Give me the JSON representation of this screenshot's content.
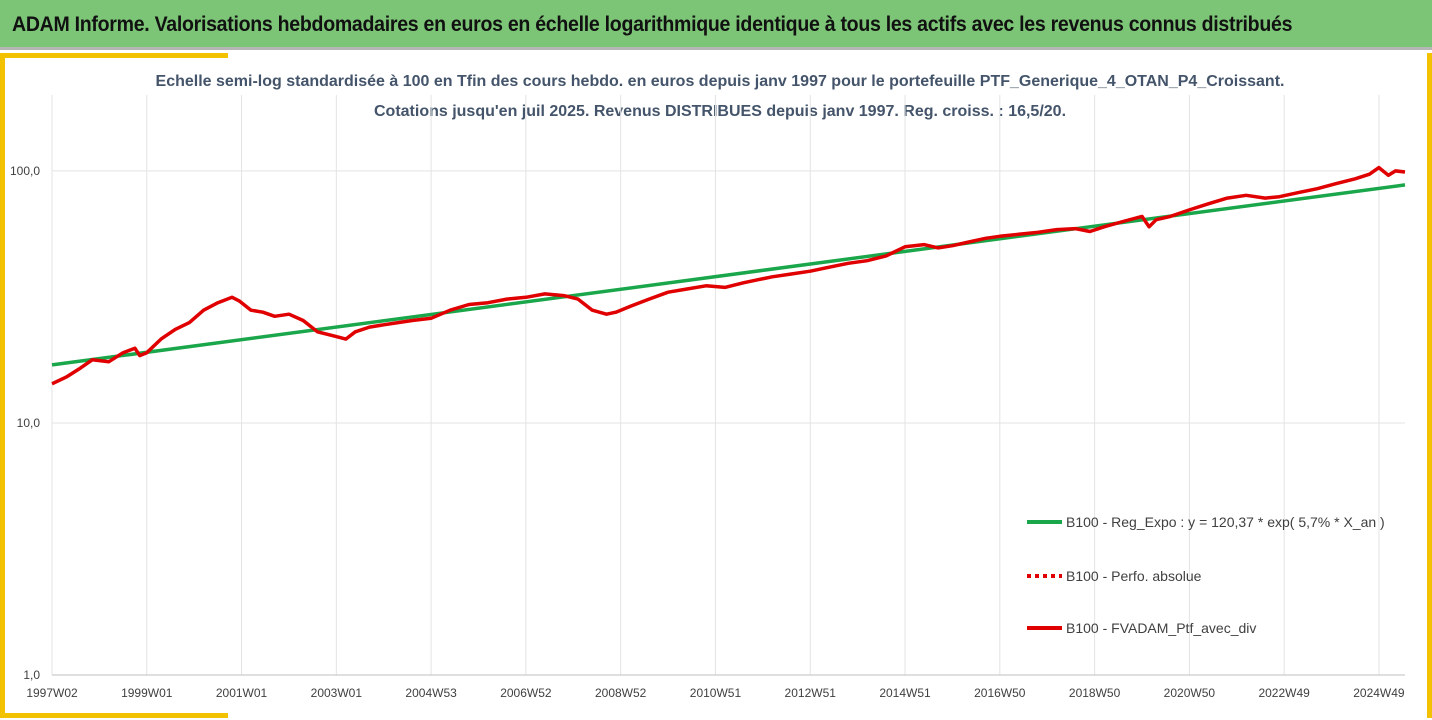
{
  "header": {
    "title": "ADAM Informe. Valorisations hebdomadaires en euros en échelle logarithmique identique à tous les actifs avec les revenus connus distribués"
  },
  "chart_data": {
    "type": "line",
    "title_line1": "Echelle semi-log standardisée  à 100 en Tfin des cours hebdo.  en euros  depuis janv 1997 pour le portefeuille PTF_Generique_4_OTAN_P4_Croissant.",
    "title_line2": "Cotations  jusqu'en juil 2025. Revenus DISTRIBUES depuis janv 1997. Reg. croiss. : 16,5/20.",
    "y_scale": "log",
    "ylim": [
      1,
      200
    ],
    "y_ticks": [
      {
        "value": 1,
        "label": "1,0"
      },
      {
        "value": 10,
        "label": "10,0"
      },
      {
        "value": 100,
        "label": "100,0"
      }
    ],
    "x_range": [
      1997.0,
      2025.55
    ],
    "x_ticks": [
      {
        "value": 1997.0,
        "label": "1997W02"
      },
      {
        "value": 1999.0,
        "label": "1999W01"
      },
      {
        "value": 2001.0,
        "label": "2001W01"
      },
      {
        "value": 2003.0,
        "label": "2003W01"
      },
      {
        "value": 2005.0,
        "label": "2004W53"
      },
      {
        "value": 2007.0,
        "label": "2006W52"
      },
      {
        "value": 2009.0,
        "label": "2008W52"
      },
      {
        "value": 2011.0,
        "label": "2010W51"
      },
      {
        "value": 2013.0,
        "label": "2012W51"
      },
      {
        "value": 2015.0,
        "label": "2014W51"
      },
      {
        "value": 2017.0,
        "label": "2016W50"
      },
      {
        "value": 2019.0,
        "label": "2018W50"
      },
      {
        "value": 2021.0,
        "label": "2020W50"
      },
      {
        "value": 2023.0,
        "label": "2022W49"
      },
      {
        "value": 2025.0,
        "label": "2024W49"
      }
    ],
    "grid": true,
    "legend_position": "bottom-right",
    "series": [
      {
        "name": "B100 - Reg_Expo : y = 120,37 * exp( 5,7% *  X_an )",
        "color": "#1aa64a",
        "style": "solid",
        "x": [
          1997.0,
          2025.55
        ],
        "y": [
          17.0,
          88.0
        ]
      },
      {
        "name": "B100 - Perfo. absolue",
        "color": "#e00000",
        "style": "dotted",
        "x": [],
        "y": []
      },
      {
        "name": "B100 - FVADAM_Ptf_avec_div",
        "color": "#e00000",
        "style": "solid",
        "x": [
          1997.0,
          1997.3,
          1997.6,
          1997.85,
          1998.2,
          1998.5,
          1998.75,
          1998.85,
          1999.0,
          1999.3,
          1999.6,
          1999.9,
          2000.2,
          2000.5,
          2000.8,
          2000.95,
          2001.2,
          2001.45,
          2001.7,
          2002.0,
          2002.3,
          2002.6,
          2002.8,
          2003.0,
          2003.2,
          2003.4,
          2003.7,
          2004.0,
          2004.3,
          2004.6,
          2005.0,
          2005.4,
          2005.8,
          2006.2,
          2006.6,
          2007.0,
          2007.4,
          2007.8,
          2008.1,
          2008.4,
          2008.7,
          2008.9,
          2009.2,
          2009.6,
          2010.0,
          2010.4,
          2010.8,
          2011.2,
          2011.6,
          2011.9,
          2012.2,
          2012.6,
          2013.0,
          2013.4,
          2013.8,
          2014.2,
          2014.6,
          2015.0,
          2015.4,
          2015.7,
          2016.0,
          2016.3,
          2016.7,
          2017.0,
          2017.4,
          2017.8,
          2018.2,
          2018.6,
          2018.9,
          2019.2,
          2019.6,
          2020.0,
          2020.15,
          2020.3,
          2020.6,
          2021.0,
          2021.4,
          2021.8,
          2022.2,
          2022.6,
          2022.9,
          2023.3,
          2023.7,
          2024.1,
          2024.5,
          2024.8,
          2025.0,
          2025.2,
          2025.35,
          2025.55
        ],
        "y": [
          14.3,
          15.2,
          16.5,
          17.8,
          17.5,
          19.0,
          19.8,
          18.5,
          19.0,
          21.5,
          23.5,
          25.0,
          28.0,
          30.0,
          31.5,
          30.5,
          28.0,
          27.5,
          26.5,
          27.0,
          25.5,
          23.0,
          22.5,
          22.0,
          21.5,
          23.0,
          24.0,
          24.5,
          25.0,
          25.5,
          26.0,
          28.0,
          29.5,
          30.0,
          31.0,
          31.5,
          32.5,
          32.0,
          31.0,
          28.0,
          27.0,
          27.5,
          29.0,
          31.0,
          33.0,
          34.0,
          35.0,
          34.5,
          36.0,
          37.0,
          38.0,
          39.0,
          40.0,
          41.5,
          43.0,
          44.0,
          46.0,
          50.0,
          51.0,
          49.5,
          50.5,
          52.0,
          54.0,
          55.0,
          56.0,
          57.0,
          58.5,
          59.0,
          57.5,
          60.0,
          63.0,
          66.0,
          60.0,
          64.0,
          66.0,
          70.0,
          74.0,
          78.0,
          80.0,
          78.0,
          79.0,
          82.0,
          85.0,
          89.0,
          93.0,
          97.0,
          103.0,
          96.0,
          100.0,
          99.0
        ]
      }
    ]
  }
}
